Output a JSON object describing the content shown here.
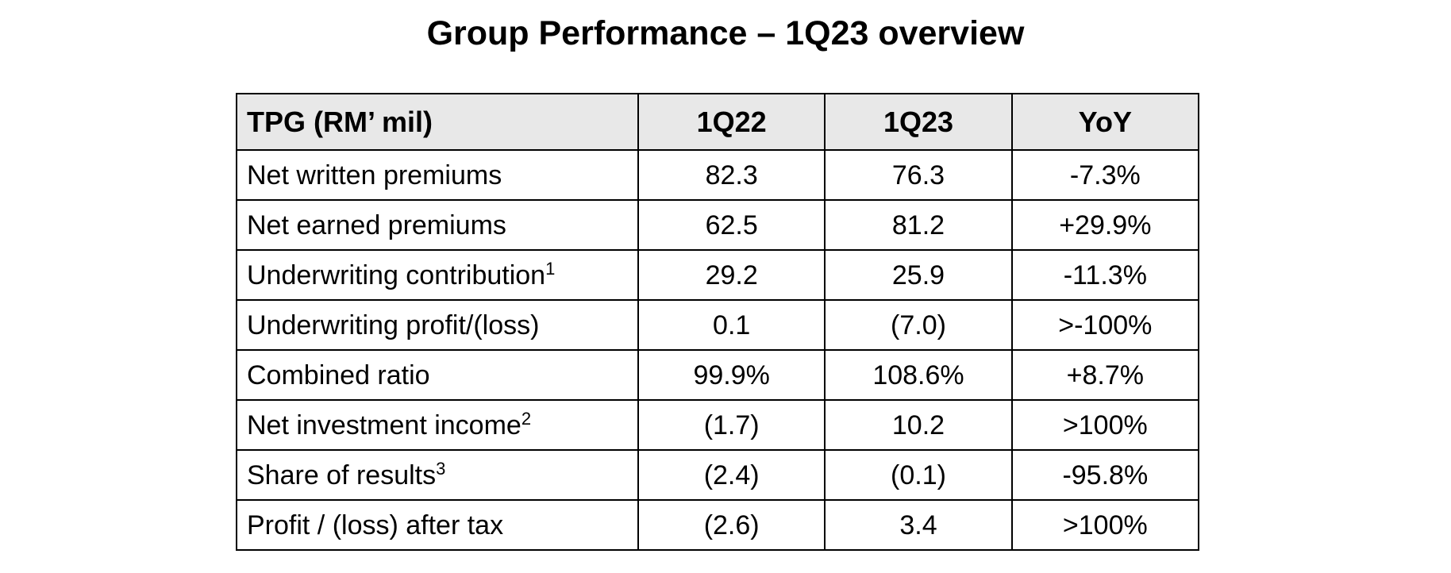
{
  "page_title": "Group Performance – 1Q23 overview",
  "table": {
    "headers": [
      "TPG (RM’ mil)",
      "1Q22",
      "1Q23",
      "YoY"
    ],
    "rows": [
      {
        "label": "Net written premiums",
        "footnote": "",
        "q1_22": "82.3",
        "q1_23": "76.3",
        "yoy": "-7.3%"
      },
      {
        "label": "Net earned premiums",
        "footnote": "",
        "q1_22": "62.5",
        "q1_23": "81.2",
        "yoy": "+29.9%"
      },
      {
        "label": "Underwriting contribution",
        "footnote": "1",
        "q1_22": "29.2",
        "q1_23": "25.9",
        "yoy": "-11.3%"
      },
      {
        "label": "Underwriting profit/(loss)",
        "footnote": "",
        "q1_22": "0.1",
        "q1_23": "(7.0)",
        "yoy": ">-100%"
      },
      {
        "label": "Combined ratio",
        "footnote": "",
        "q1_22": "99.9%",
        "q1_23": "108.6%",
        "yoy": "+8.7%"
      },
      {
        "label": "Net investment income",
        "footnote": "2",
        "q1_22": "(1.7)",
        "q1_23": "10.2",
        "yoy": ">100%"
      },
      {
        "label": "Share of results",
        "footnote": "3",
        "q1_22": "(2.4)",
        "q1_23": "(0.1)",
        "yoy": "-95.8%"
      },
      {
        "label": "Profit / (loss) after tax",
        "footnote": "",
        "q1_22": "(2.6)",
        "q1_23": "3.4",
        "yoy": ">100%"
      }
    ]
  }
}
